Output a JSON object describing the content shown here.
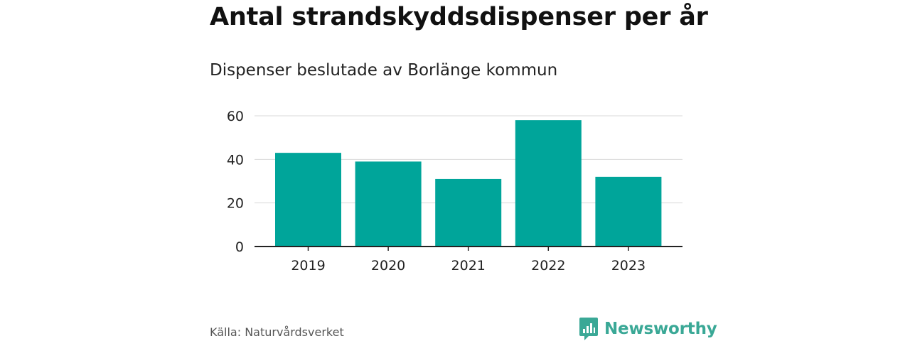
{
  "title": "Antal strandskyddsdispenser per år",
  "subtitle": "Dispenser beslutade av Borlänge kommun",
  "source": "Källa: Naturvårdsverket",
  "brand": {
    "name": "Newsworthy",
    "icon": "bar-chart-speech-bubble-icon",
    "color": "#3aa896"
  },
  "colors": {
    "bar": "#00a59a",
    "grid": "#d9d9d9",
    "axis": "#222222",
    "text": "#222222"
  },
  "chart_data": {
    "type": "bar",
    "categories": [
      "2019",
      "2020",
      "2021",
      "2022",
      "2023"
    ],
    "values": [
      43,
      39,
      31,
      58,
      32
    ],
    "title": "Antal strandskyddsdispenser per år",
    "subtitle": "Dispenser beslutade av Borlänge kommun",
    "xlabel": "",
    "ylabel": "",
    "ylim": [
      0,
      60
    ],
    "yticks": [
      0,
      20,
      40,
      60
    ],
    "grid": true,
    "legend": "none"
  }
}
